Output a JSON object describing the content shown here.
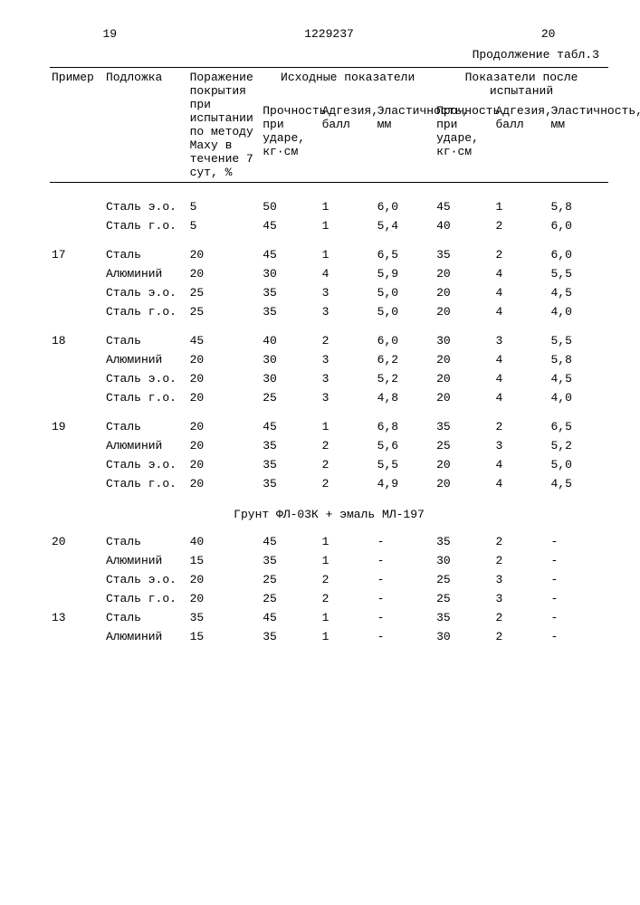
{
  "page_left_number": "19",
  "doc_number": "1229237",
  "page_right_number": "20",
  "caption": "Продолжение табл.3",
  "columns": {
    "primer": "Пример",
    "podlozhka": "Подложка",
    "porazhenie": "Поражение покрытия при испытании по методу Маху в течение 7 сут, %",
    "group1_header": "Исходные показатели",
    "group2_header": "Показатели после испытаний",
    "proch": "Прочность при ударе, кг·см",
    "adgez": "Адгезия, балл",
    "elast": "Эластичность, мм"
  },
  "section_title": "Грунт ФЛ-03К + эмаль МЛ-197",
  "rows_top": [
    {
      "primer": "",
      "pod": "Сталь э.о.",
      "por": "5",
      "p1": "50",
      "a1": "1",
      "e1": "6,0",
      "p2": "45",
      "a2": "1",
      "e2": "5,8",
      "gap": false
    },
    {
      "primer": "",
      "pod": "Сталь г.о.",
      "por": "5",
      "p1": "45",
      "a1": "1",
      "e1": "5,4",
      "p2": "40",
      "a2": "2",
      "e2": "6,0",
      "gap": false
    },
    {
      "primer": "17",
      "pod": "Сталь",
      "por": "20",
      "p1": "45",
      "a1": "1",
      "e1": "6,5",
      "p2": "35",
      "a2": "2",
      "e2": "6,0",
      "gap": true
    },
    {
      "primer": "",
      "pod": "Алюминий",
      "por": "20",
      "p1": "30",
      "a1": "4",
      "e1": "5,9",
      "p2": "20",
      "a2": "4",
      "e2": "5,5",
      "gap": false
    },
    {
      "primer": "",
      "pod": "Сталь э.о.",
      "por": "25",
      "p1": "35",
      "a1": "3",
      "e1": "5,0",
      "p2": "20",
      "a2": "4",
      "e2": "4,5",
      "gap": false
    },
    {
      "primer": "",
      "pod": "Сталь г.о.",
      "por": "25",
      "p1": "35",
      "a1": "3",
      "e1": "5,0",
      "p2": "20",
      "a2": "4",
      "e2": "4,0",
      "gap": false
    },
    {
      "primer": "18",
      "pod": "Сталь",
      "por": "45",
      "p1": "40",
      "a1": "2",
      "e1": "6,0",
      "p2": "30",
      "a2": "3",
      "e2": "5,5",
      "gap": true
    },
    {
      "primer": "",
      "pod": "Алюминий",
      "por": "20",
      "p1": "30",
      "a1": "3",
      "e1": "6,2",
      "p2": "20",
      "a2": "4",
      "e2": "5,8",
      "gap": false
    },
    {
      "primer": "",
      "pod": "Сталь э.о.",
      "por": "20",
      "p1": "30",
      "a1": "3",
      "e1": "5,2",
      "p2": "20",
      "a2": "4",
      "e2": "4,5",
      "gap": false
    },
    {
      "primer": "",
      "pod": "Сталь г.о.",
      "por": "20",
      "p1": "25",
      "a1": "3",
      "e1": "4,8",
      "p2": "20",
      "a2": "4",
      "e2": "4,0",
      "gap": false
    },
    {
      "primer": "19",
      "pod": "Сталь",
      "por": "20",
      "p1": "45",
      "a1": "1",
      "e1": "6,8",
      "p2": "35",
      "a2": "2",
      "e2": "6,5",
      "gap": true
    },
    {
      "primer": "",
      "pod": "Алюминий",
      "por": "20",
      "p1": "35",
      "a1": "2",
      "e1": "5,6",
      "p2": "25",
      "a2": "3",
      "e2": "5,2",
      "gap": false
    },
    {
      "primer": "",
      "pod": "Сталь э.о.",
      "por": "20",
      "p1": "35",
      "a1": "2",
      "e1": "5,5",
      "p2": "20",
      "a2": "4",
      "e2": "5,0",
      "gap": false
    },
    {
      "primer": "",
      "pod": "Сталь г.о.",
      "por": "20",
      "p1": "35",
      "a1": "2",
      "e1": "4,9",
      "p2": "20",
      "a2": "4",
      "e2": "4,5",
      "gap": false
    }
  ],
  "rows_bottom": [
    {
      "primer": "20",
      "pod": "Сталь",
      "por": "40",
      "p1": "45",
      "a1": "1",
      "e1": "-",
      "p2": "35",
      "a2": "2",
      "e2": "-",
      "gap": false
    },
    {
      "primer": "",
      "pod": "Алюминий",
      "por": "15",
      "p1": "35",
      "a1": "1",
      "e1": "-",
      "p2": "30",
      "a2": "2",
      "e2": "-",
      "gap": false
    },
    {
      "primer": "",
      "pod": "Сталь э.о.",
      "por": "20",
      "p1": "25",
      "a1": "2",
      "e1": "-",
      "p2": "25",
      "a2": "3",
      "e2": "-",
      "gap": false
    },
    {
      "primer": "",
      "pod": "Сталь г.о.",
      "por": "20",
      "p1": "25",
      "a1": "2",
      "e1": "-",
      "p2": "25",
      "a2": "3",
      "e2": "-",
      "gap": false
    },
    {
      "primer": "13",
      "pod": "Сталь",
      "por": "35",
      "p1": "45",
      "a1": "1",
      "e1": "-",
      "p2": "35",
      "a2": "2",
      "e2": "-",
      "gap": false
    },
    {
      "primer": "",
      "pod": "Алюминий",
      "por": "15",
      "p1": "35",
      "a1": "1",
      "e1": "-",
      "p2": "30",
      "a2": "2",
      "e2": "-",
      "gap": false
    }
  ]
}
